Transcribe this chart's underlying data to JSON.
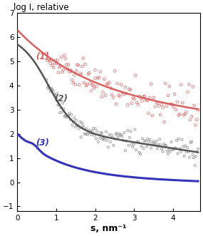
{
  "title": "log I, relative",
  "xlabel": "s, nm⁻¹",
  "xlim": [
    0,
    4.7
  ],
  "ylim": [
    -1.2,
    7.0
  ],
  "yticks": [
    -1,
    0,
    1,
    2,
    3,
    4,
    5,
    6,
    7
  ],
  "xticks": [
    0,
    1,
    2,
    3,
    4
  ],
  "background_color": "#ffffff",
  "curve1_color": "#d96060",
  "curve2_color": "#555555",
  "curve3_color": "#3333bb",
  "scatter1_color": "#d96060",
  "scatter2_color": "#777777",
  "label1": "(1)",
  "label2": "(2)",
  "label3": "(3)"
}
